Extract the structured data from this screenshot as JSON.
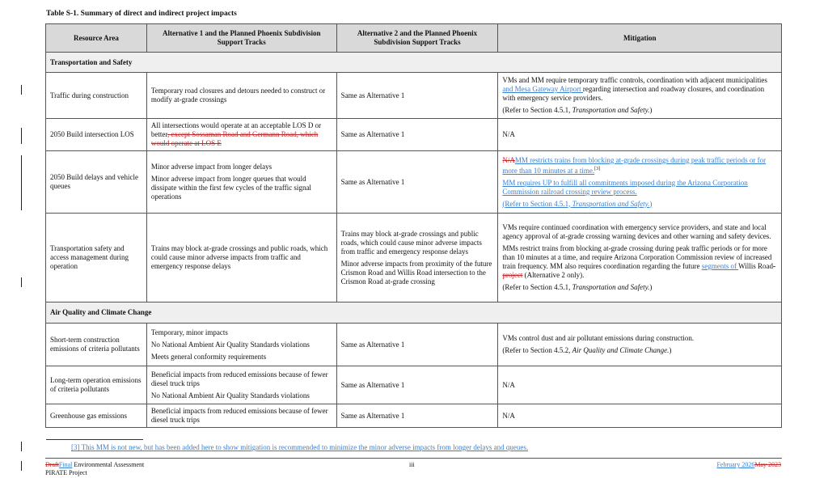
{
  "title": "Table S-1. Summary of direct and indirect project impacts",
  "headers": [
    "Resource Area",
    "Alternative 1 and the Planned Phoenix Subdivision Support Tracks",
    "Alternative 2 and the Planned Phoenix Subdivision Support Tracks",
    "Mitigation"
  ],
  "rows": [
    {
      "section": "Transportation and Safety"
    },
    {
      "cells": [
        [
          [
            [
              "t",
              "Traffic during construction"
            ]
          ]
        ],
        [
          [
            [
              "t",
              "Temporary road closures and detours needed to construct or modify at-grade crossings"
            ]
          ]
        ],
        [
          [
            [
              "t",
              "Same as Alternative 1"
            ]
          ]
        ],
        [
          [
            [
              "t",
              "VMs and MM require temporary traffic controls, coordination with adjacent municipalities "
            ],
            [
              "ins",
              "and Mesa Gateway Airport "
            ],
            [
              "t",
              "regarding intersection and roadway closures, and coordination with emergency service providers."
            ]
          ],
          [
            [
              "t",
              "(Refer to Section 4.5.1, "
            ],
            [
              "i",
              "Transportation and Safety."
            ],
            [
              "t",
              ")"
            ]
          ]
        ]
      ]
    },
    {
      "cells": [
        [
          [
            [
              "t",
              "2050 Build intersection LOS"
            ]
          ]
        ],
        [
          [
            [
              "t",
              "All intersections would operate at an acceptable LOS D or better"
            ],
            [
              "del",
              ", except Sossaman Road and Germann Road, which would operate at LOS E"
            ]
          ]
        ],
        [
          [
            [
              "t",
              "Same as Alternative 1"
            ]
          ]
        ],
        [
          [
            [
              "t",
              "N/A"
            ]
          ]
        ]
      ]
    },
    {
      "cells": [
        [
          [
            [
              "t",
              "2050 Build delays and vehicle queues"
            ]
          ]
        ],
        [
          [
            [
              "t",
              "Minor adverse impact from longer delays"
            ]
          ],
          [
            [
              "t",
              "Minor adverse impact from longer queues that would dissipate within the first few cycles of the traffic signal operations"
            ]
          ]
        ],
        [
          [
            [
              "t",
              "Same as Alternative 1"
            ]
          ]
        ],
        [
          [
            [
              "del",
              "N/A"
            ],
            [
              "ins",
              "MM restricts trains from blocking at-grade crossings during peak traffic periods or for more than 10 minutes at a time."
            ],
            [
              "sup",
              "[3]"
            ]
          ],
          [
            [
              "ins",
              "MM requires UP to fulfill all commitments imposed during the Arizona Corporation Commission railroad crossing review process."
            ]
          ],
          [
            [
              "ins",
              "(Refer to Section 4.5.1, "
            ],
            [
              "ins i",
              "Transportation and Safety."
            ],
            [
              "ins",
              ")"
            ]
          ]
        ]
      ]
    },
    {
      "cells": [
        [
          [
            [
              "t",
              "Transportation safety and access management during operation"
            ]
          ]
        ],
        [
          [
            [
              "t",
              "Trains may block at-grade crossings and public roads, which could cause minor adverse impacts from traffic and emergency response delays"
            ]
          ]
        ],
        [
          [
            [
              "t",
              "Trains may block at-grade crossings and public roads, which could cause minor adverse impacts from traffic and emergency response delays"
            ]
          ],
          [
            [
              "t",
              "Minor adverse impacts from proximity of the future Crismon Road and Willis Road intersection to the Crismon Road at-grade crossing"
            ]
          ]
        ],
        [
          [
            [
              "t",
              "VMs require continued coordination with emergency service providers, and state and local agency approval of at-grade crossing warning devices and other warning and safety devices."
            ]
          ],
          [
            [
              "t",
              "MMs restrict trains from blocking at-grade crossing during peak traffic periods or for more than 10 minutes at a time, and require Arizona Corporation Commission review of increased train frequency.  MM also requires coordination regarding the future "
            ],
            [
              "ins",
              "segments of "
            ],
            [
              "t",
              "Willis Road"
            ],
            [
              "del",
              "-project"
            ],
            [
              "t",
              " (Alternative 2 only)."
            ]
          ],
          [
            [
              "t",
              "(Refer to Section 4.5.1, "
            ],
            [
              "i",
              "Transportation and Safety."
            ],
            [
              "t",
              ")"
            ]
          ]
        ]
      ]
    },
    {
      "section": "Air Quality and Climate Change"
    },
    {
      "cells": [
        [
          [
            [
              "t",
              "Short-term construction emissions of criteria pollutants"
            ]
          ]
        ],
        [
          [
            [
              "t",
              "Temporary, minor impacts"
            ]
          ],
          [
            [
              "t",
              "No National Ambient Air Quality Standards violations"
            ]
          ],
          [
            [
              "t",
              "Meets general conformity requirements"
            ]
          ]
        ],
        [
          [
            [
              "t",
              "Same as Alternative 1"
            ]
          ]
        ],
        [
          [
            [
              "t",
              "VMs control dust and air pollutant emissions during construction."
            ]
          ],
          [
            [
              "t",
              "(Refer to Section 4.5.2, "
            ],
            [
              "i",
              "Air Quality and Climate Change."
            ],
            [
              "t",
              ")"
            ]
          ]
        ]
      ]
    },
    {
      "cells": [
        [
          [
            [
              "t",
              "Long-term operation emissions of criteria pollutants"
            ]
          ]
        ],
        [
          [
            [
              "t",
              "Beneficial impacts from reduced emissions because of fewer diesel truck trips"
            ]
          ],
          [
            [
              "t",
              "No National Ambient Air Quality Standards violations"
            ]
          ]
        ],
        [
          [
            [
              "t",
              "Same as Alternative 1"
            ]
          ]
        ],
        [
          [
            [
              "t",
              "N/A"
            ]
          ]
        ]
      ]
    },
    {
      "cells": [
        [
          [
            [
              "t",
              "Greenhouse gas emissions"
            ]
          ]
        ],
        [
          [
            [
              "t",
              "Beneficial impacts from reduced emissions because of fewer diesel truck trips"
            ]
          ]
        ],
        [
          [
            [
              "t",
              "Same as Alternative 1"
            ]
          ]
        ],
        [
          [
            [
              "t",
              "N/A"
            ]
          ]
        ]
      ]
    }
  ],
  "footnote": "[3] This MM is not new, but has been added here to show mitigation is recommended to minimize the minor adverse impacts from longer delays and queues.",
  "footer": {
    "status_deleted": "Draft",
    "status_inserted": "Final",
    "doc_name": " Environmental Assessment",
    "project": "PIRATE Project",
    "page": "iii",
    "date_inserted": "February 2026",
    "date_deleted": "May 2023"
  }
}
